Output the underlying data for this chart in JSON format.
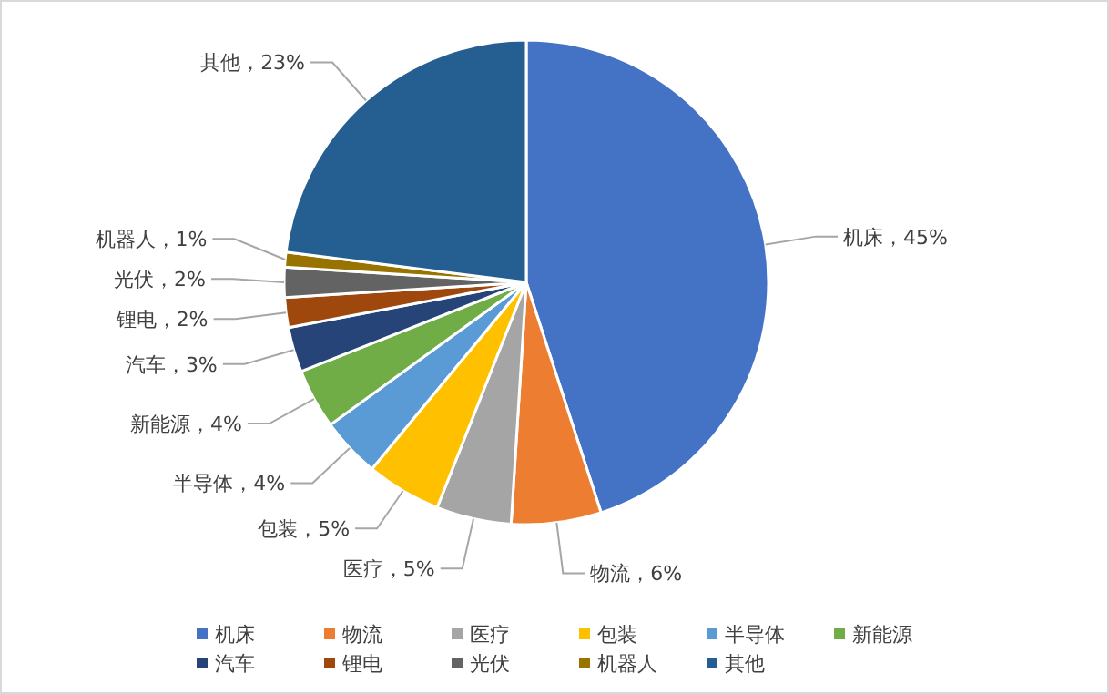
{
  "chart_data": {
    "type": "pie",
    "categories": [
      "机床",
      "物流",
      "医疗",
      "包装",
      "半导体",
      "新能源",
      "汽车",
      "锂电",
      "光伏",
      "机器人",
      "其他"
    ],
    "values": [
      45,
      6,
      5,
      5,
      4,
      4,
      3,
      2,
      2,
      1,
      23
    ],
    "value_labels": [
      "机床，45%",
      "物流，6%",
      "医疗，5%",
      "包装，5%",
      "半导体，4%",
      "新能源，4%",
      "汽车，3%",
      "锂电，2%",
      "光伏，2%",
      "机器人，1%",
      "其他，23%"
    ],
    "colors": [
      "#4472c4",
      "#ed7d31",
      "#a5a5a5",
      "#ffc000",
      "#5b9bd5",
      "#70ad47",
      "#264478",
      "#9e480e",
      "#636363",
      "#997300",
      "#255e91"
    ],
    "legend": "bottom"
  }
}
